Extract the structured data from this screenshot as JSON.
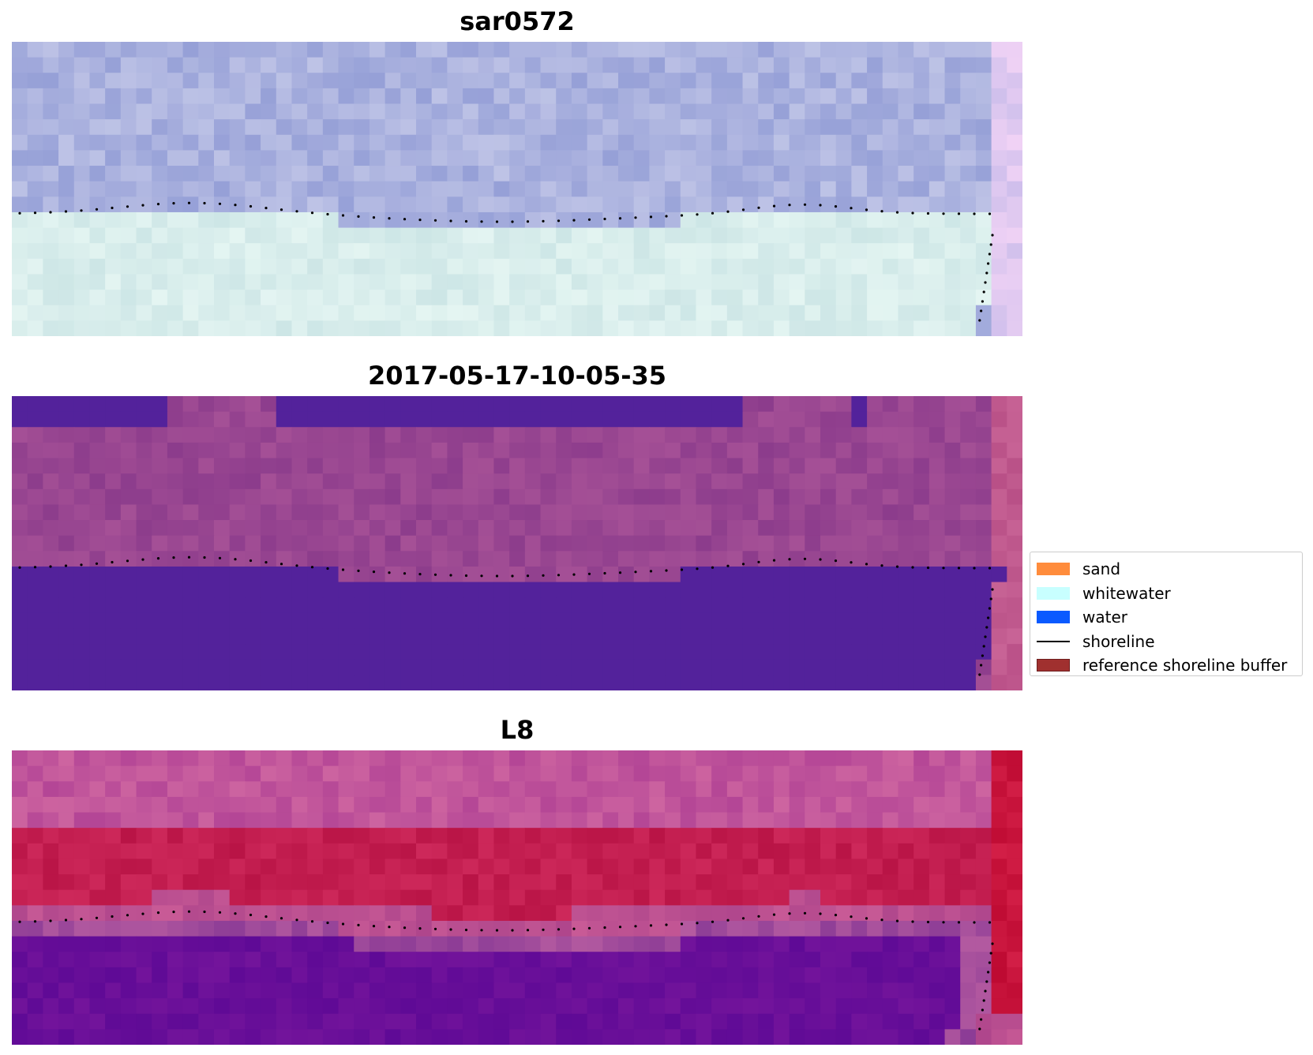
{
  "panels": [
    {
      "title": "sar0572",
      "style": "rgb"
    },
    {
      "title": "2017-05-17-10-05-35",
      "style": "classified"
    },
    {
      "title": "L8",
      "style": "index"
    }
  ],
  "legend": {
    "items": [
      {
        "label": "sand",
        "color": "#ff8c3c",
        "kind": "patch"
      },
      {
        "label": "whitewater",
        "color": "#c8ffff",
        "kind": "patch"
      },
      {
        "label": "water",
        "color": "#0a5aff",
        "kind": "patch"
      },
      {
        "label": "shoreline",
        "color": "#000000",
        "kind": "line"
      },
      {
        "label": "reference shoreline buffer",
        "color": "#a0302f",
        "kind": "patch"
      }
    ]
  }
}
